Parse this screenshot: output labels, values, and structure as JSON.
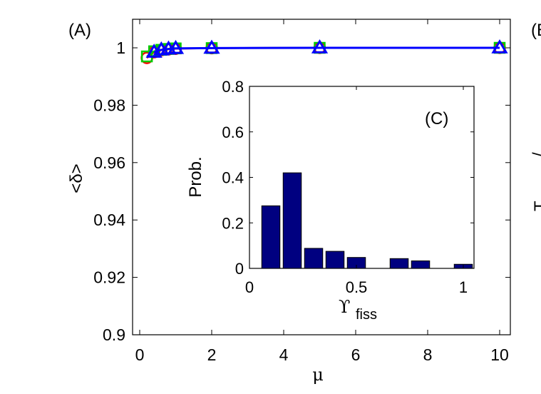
{
  "chart_data": [
    {
      "type": "line",
      "panel_label": "(A)",
      "xlabel": "μ",
      "ylabel": "<δ>",
      "xlim": [
        0,
        10
      ],
      "ylim": [
        0.9,
        1.01
      ],
      "xticks": [
        "0",
        "2",
        "4",
        "6",
        "8",
        "10"
      ],
      "yticks": [
        "0.9",
        "0.92",
        "0.94",
        "0.96",
        "0.98",
        "1"
      ],
      "grid": false,
      "series": [
        {
          "marker": "circle",
          "color": "#ff0000",
          "x": [
            0.2,
            0.4,
            0.6,
            0.8,
            1.0,
            2.0,
            5.0,
            10.0
          ],
          "y": [
            0.9965,
            0.9985,
            0.9992,
            0.9995,
            0.9997,
            0.9999,
            1.0,
            1.0
          ]
        },
        {
          "marker": "square",
          "color": "#00cc00",
          "x": [
            0.2,
            0.4,
            0.6,
            0.8,
            1.0,
            2.0,
            5.0,
            10.0
          ],
          "y": [
            0.997,
            0.9988,
            0.9993,
            0.9996,
            0.9998,
            0.9999,
            1.0,
            1.0
          ]
        },
        {
          "marker": "triangle",
          "color": "#0000ff",
          "x": [
            0.4,
            0.6,
            0.8,
            1.0,
            2.0,
            5.0,
            10.0
          ],
          "y": [
            0.9985,
            0.9993,
            0.9996,
            0.9998,
            0.9999,
            1.0,
            1.0
          ]
        }
      ]
    },
    {
      "type": "bar",
      "panel_label": "(C)",
      "xlabel_main": "ϒ",
      "xlabel_sub": "fiss",
      "ylabel": "Prob.",
      "xlim": [
        0,
        1.05
      ],
      "ylim": [
        0,
        0.8
      ],
      "xticks": [
        "0",
        "0.5",
        "1"
      ],
      "yticks": [
        "0",
        "0.2",
        "0.4",
        "0.6",
        "0.8"
      ],
      "bar_color": "#000080",
      "centers": [
        0.1,
        0.2,
        0.3,
        0.4,
        0.5,
        0.6,
        0.7,
        0.8,
        0.9,
        1.0
      ],
      "values": [
        0.275,
        0.42,
        0.088,
        0.075,
        0.048,
        0.0,
        0.043,
        0.033,
        0.0,
        0.018
      ]
    }
  ],
  "clipped_labels": [
    "(B",
    "/",
    "T"
  ]
}
